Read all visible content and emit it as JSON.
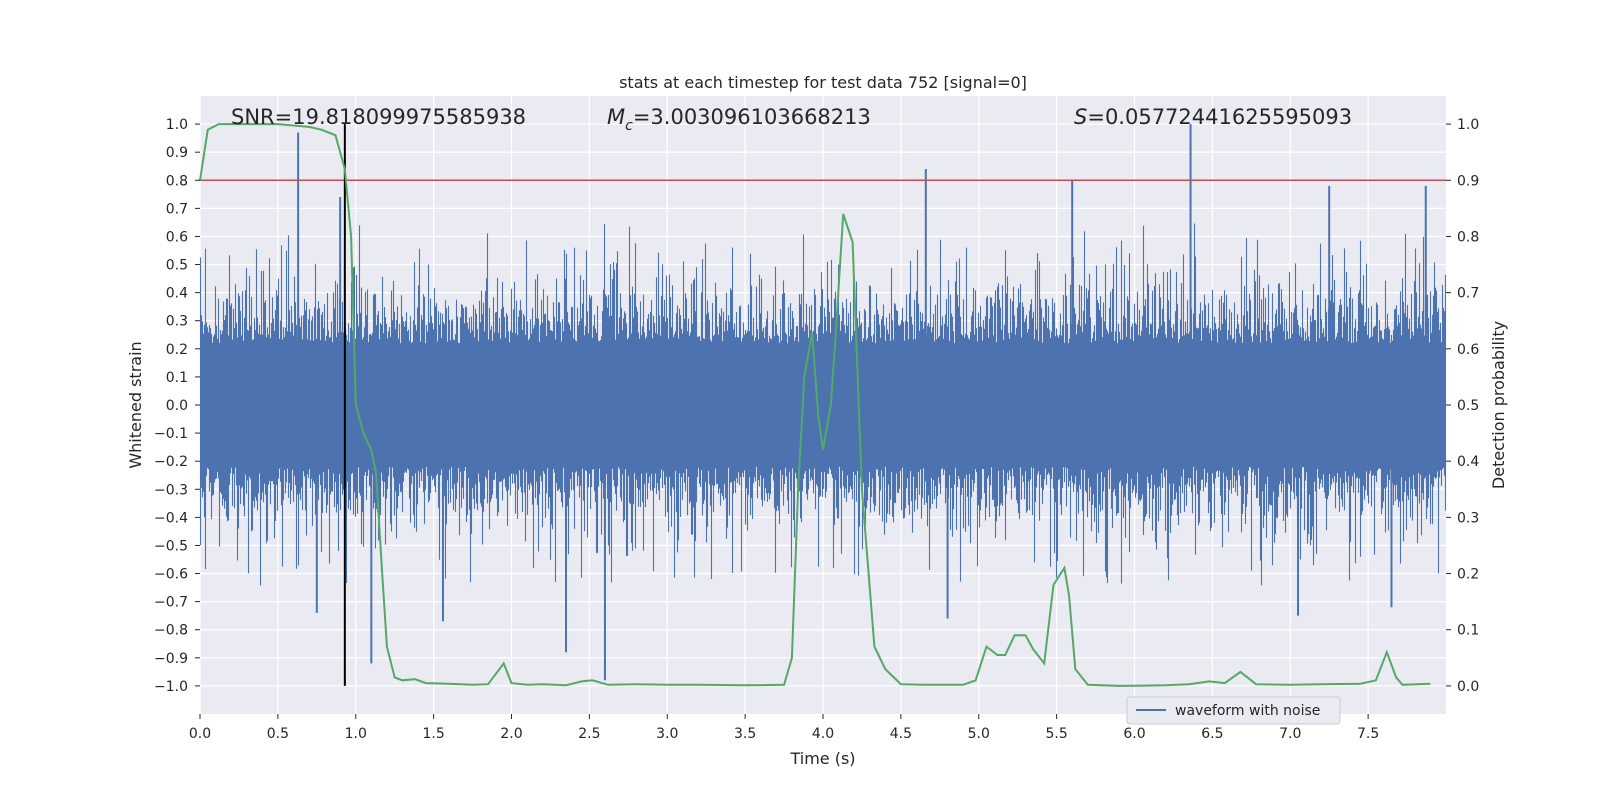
{
  "chart_data": {
    "type": "line",
    "title": "stats at each timestep for test data 752 [signal=0]",
    "xlabel": "Time (s)",
    "ylabel_left": "Whitened strain",
    "ylabel_right": "Detection probability",
    "xlim": [
      0.0,
      8.0
    ],
    "ylim_left": [
      -1.1,
      1.1
    ],
    "ylim_right": [
      -0.05,
      1.05
    ],
    "x_ticks": [
      "0.0",
      "0.5",
      "1.0",
      "1.5",
      "2.0",
      "2.5",
      "3.0",
      "3.5",
      "4.0",
      "4.5",
      "5.0",
      "5.5",
      "6.0",
      "6.5",
      "7.0",
      "7.5"
    ],
    "x_tick_values": [
      0.0,
      0.5,
      1.0,
      1.5,
      2.0,
      2.5,
      3.0,
      3.5,
      4.0,
      4.5,
      5.0,
      5.5,
      6.0,
      6.5,
      7.0,
      7.5
    ],
    "y_left_ticks": [
      "1.0",
      "0.9",
      "0.8",
      "0.7",
      "0.6",
      "0.5",
      "0.4",
      "0.3",
      "0.2",
      "0.1",
      "0.0",
      "−0.1",
      "−0.2",
      "−0.3",
      "−0.4",
      "−0.5",
      "−0.6",
      "−0.7",
      "−0.8",
      "−0.9",
      "−1.0"
    ],
    "y_left_tick_values": [
      1.0,
      0.9,
      0.8,
      0.7,
      0.6,
      0.5,
      0.4,
      0.3,
      0.2,
      0.1,
      0.0,
      -0.1,
      -0.2,
      -0.3,
      -0.4,
      -0.5,
      -0.6,
      -0.7,
      -0.8,
      -0.9,
      -1.0
    ],
    "y_right_ticks": [
      "1.0",
      "0.9",
      "0.8",
      "0.7",
      "0.6",
      "0.5",
      "0.4",
      "0.3",
      "0.2",
      "0.1",
      "0.0"
    ],
    "y_right_tick_values": [
      1.0,
      0.9,
      0.8,
      0.7,
      0.6,
      0.5,
      0.4,
      0.3,
      0.2,
      0.1,
      0.0
    ],
    "annotations": {
      "snr": "SNR=19.818099975585938",
      "mc_symbol": "M",
      "mc_sub": "c",
      "mc_value": "=3.003096103668213",
      "s_symbol": "S",
      "s_value": "=0.05772441625595093"
    },
    "threshold": {
      "value": 0.8,
      "color": "#c44e52"
    },
    "marker_time": 0.93,
    "series": [
      {
        "name": "waveform with noise",
        "axis": "left",
        "color": "#4c72b0",
        "kind": "noise",
        "duration": 8.0,
        "typical_envelope": [
          -0.35,
          0.35
        ],
        "peaks": [
          {
            "x": 0.63,
            "y": 0.97
          },
          {
            "x": 0.9,
            "y": 0.74
          },
          {
            "x": 4.66,
            "y": 0.84
          },
          {
            "x": 5.6,
            "y": 0.8
          },
          {
            "x": 6.36,
            "y": 1.0
          },
          {
            "x": 7.25,
            "y": 0.78
          },
          {
            "x": 7.87,
            "y": 0.78
          },
          {
            "x": 2.6,
            "y": -0.98
          },
          {
            "x": 0.75,
            "y": -0.74
          },
          {
            "x": 1.1,
            "y": -0.92
          },
          {
            "x": 2.35,
            "y": -0.88
          },
          {
            "x": 1.56,
            "y": -0.77
          },
          {
            "x": 7.05,
            "y": -0.75
          },
          {
            "x": 4.8,
            "y": -0.76
          },
          {
            "x": 7.65,
            "y": -0.72
          }
        ]
      },
      {
        "name": "detection probability",
        "axis": "right",
        "color": "#55a868",
        "points": [
          [
            0.0,
            0.9
          ],
          [
            0.05,
            0.99
          ],
          [
            0.12,
            1.0
          ],
          [
            0.3,
            1.0
          ],
          [
            0.5,
            1.0
          ],
          [
            0.7,
            0.995
          ],
          [
            0.78,
            0.99
          ],
          [
            0.87,
            0.98
          ],
          [
            0.93,
            0.92
          ],
          [
            0.97,
            0.8
          ],
          [
            1.0,
            0.5
          ],
          [
            1.05,
            0.45
          ],
          [
            1.1,
            0.42
          ],
          [
            1.13,
            0.38
          ],
          [
            1.17,
            0.2
          ],
          [
            1.2,
            0.07
          ],
          [
            1.25,
            0.015
          ],
          [
            1.3,
            0.01
          ],
          [
            1.38,
            0.012
          ],
          [
            1.45,
            0.005
          ],
          [
            1.6,
            0.004
          ],
          [
            1.75,
            0.002
          ],
          [
            1.85,
            0.003
          ],
          [
            1.95,
            0.04
          ],
          [
            2.0,
            0.005
          ],
          [
            2.1,
            0.002
          ],
          [
            2.2,
            0.003
          ],
          [
            2.35,
            0.001
          ],
          [
            2.45,
            0.008
          ],
          [
            2.52,
            0.01
          ],
          [
            2.62,
            0.002
          ],
          [
            2.8,
            0.003
          ],
          [
            3.0,
            0.002
          ],
          [
            3.2,
            0.002
          ],
          [
            3.5,
            0.001
          ],
          [
            3.75,
            0.002
          ],
          [
            3.8,
            0.05
          ],
          [
            3.84,
            0.35
          ],
          [
            3.88,
            0.55
          ],
          [
            3.93,
            0.63
          ],
          [
            3.97,
            0.48
          ],
          [
            4.0,
            0.42
          ],
          [
            4.05,
            0.5
          ],
          [
            4.08,
            0.62
          ],
          [
            4.13,
            0.84
          ],
          [
            4.19,
            0.79
          ],
          [
            4.25,
            0.35
          ],
          [
            4.33,
            0.07
          ],
          [
            4.4,
            0.03
          ],
          [
            4.5,
            0.003
          ],
          [
            4.65,
            0.002
          ],
          [
            4.9,
            0.002
          ],
          [
            4.98,
            0.01
          ],
          [
            5.05,
            0.07
          ],
          [
            5.12,
            0.055
          ],
          [
            5.17,
            0.055
          ],
          [
            5.23,
            0.09
          ],
          [
            5.3,
            0.09
          ],
          [
            5.35,
            0.065
          ],
          [
            5.42,
            0.04
          ],
          [
            5.48,
            0.18
          ],
          [
            5.55,
            0.21
          ],
          [
            5.58,
            0.16
          ],
          [
            5.62,
            0.03
          ],
          [
            5.7,
            0.002
          ],
          [
            5.9,
            0.0
          ],
          [
            6.2,
            0.001
          ],
          [
            6.35,
            0.003
          ],
          [
            6.48,
            0.008
          ],
          [
            6.58,
            0.005
          ],
          [
            6.68,
            0.025
          ],
          [
            6.78,
            0.003
          ],
          [
            7.0,
            0.002
          ],
          [
            7.2,
            0.003
          ],
          [
            7.45,
            0.004
          ],
          [
            7.55,
            0.01
          ],
          [
            7.62,
            0.06
          ],
          [
            7.68,
            0.015
          ],
          [
            7.72,
            0.002
          ],
          [
            7.9,
            0.004
          ]
        ]
      }
    ],
    "legend": {
      "label": "waveform with noise",
      "placement": "lower-right"
    }
  }
}
